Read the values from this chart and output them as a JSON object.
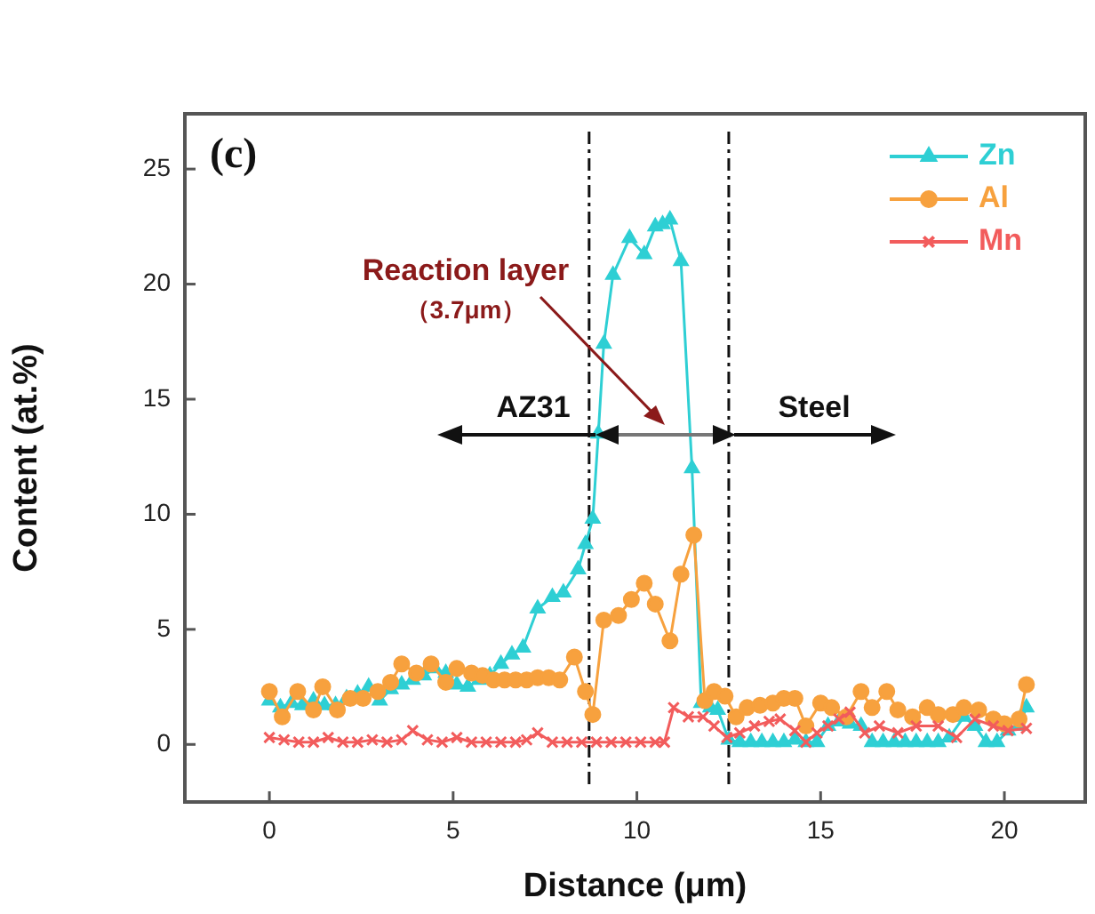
{
  "chart_data": {
    "type": "line",
    "xlabel": "Distance (μm)",
    "ylabel": "Content (at.%)",
    "xlim": [
      -2.3,
      22.2
    ],
    "ylim": [
      -2.5,
      27.4
    ],
    "xticks": [
      0,
      5,
      10,
      15,
      20
    ],
    "yticks": [
      0,
      5,
      10,
      15,
      20,
      25
    ],
    "grid": false,
    "legend": "top right",
    "annotations": [
      "(c)",
      "Reaction layer",
      "（3.7μm）",
      "AZ31",
      "Steel"
    ],
    "ref_lines": [
      {
        "axis": "x",
        "value": 8.7,
        "color": "#111111",
        "line_style": "dashed"
      },
      {
        "axis": "x",
        "value": 12.5,
        "color": "#111111",
        "line_style": "dashed"
      }
    ],
    "series": [
      {
        "name": "Zn",
        "color": "#2ecfd4",
        "marker": "triangle",
        "x": [
          0,
          0.3,
          0.6,
          0.9,
          1.2,
          1.5,
          1.8,
          2.1,
          2.4,
          2.7,
          3.0,
          3.3,
          3.6,
          3.9,
          4.2,
          4.5,
          4.8,
          5.1,
          5.4,
          5.7,
          6.0,
          6.3,
          6.6,
          6.9,
          7.3,
          7.7,
          8.0,
          8.4,
          8.6,
          8.8,
          8.95,
          9.1,
          9.35,
          9.8,
          10.2,
          10.5,
          10.7,
          10.9,
          11.2,
          11.5,
          11.75,
          12.0,
          12.2,
          12.5,
          12.8,
          13.1,
          13.4,
          13.7,
          14.0,
          14.3,
          14.6,
          14.9,
          15.2,
          15.5,
          15.8,
          16.1,
          16.4,
          16.7,
          17.0,
          17.3,
          17.6,
          17.9,
          18.2,
          18.5,
          18.9,
          19.2,
          19.5,
          19.8,
          20.1,
          20.4,
          20.6
        ],
        "values": [
          1.9,
          1.6,
          1.8,
          1.7,
          1.9,
          1.7,
          1.7,
          2.0,
          2.2,
          2.5,
          1.9,
          2.4,
          2.6,
          2.8,
          3.0,
          3.3,
          3.1,
          2.6,
          2.5,
          2.8,
          3.0,
          3.5,
          3.9,
          4.2,
          5.9,
          6.4,
          6.6,
          7.6,
          8.7,
          9.8,
          13.5,
          17.4,
          20.4,
          22.0,
          21.3,
          22.5,
          22.6,
          22.8,
          21.0,
          12.0,
          1.8,
          1.6,
          1.5,
          0.2,
          0.1,
          0.1,
          0.1,
          0.1,
          0.1,
          0.2,
          0.1,
          0.1,
          0.8,
          1.0,
          0.9,
          0.8,
          0.1,
          0.1,
          0.1,
          0.1,
          0.1,
          0.1,
          0.1,
          0.3,
          1.2,
          0.8,
          0.1,
          0.1,
          0.6,
          0.8,
          1.6
        ]
      },
      {
        "name": "Al",
        "color": "#f7a13e",
        "marker": "circle",
        "x": [
          0,
          0.35,
          0.77,
          1.2,
          1.45,
          1.85,
          2.2,
          2.55,
          2.95,
          3.3,
          3.6,
          4.0,
          4.4,
          4.8,
          5.1,
          5.5,
          5.8,
          6.1,
          6.4,
          6.7,
          7.0,
          7.3,
          7.6,
          7.9,
          8.3,
          8.6,
          8.8,
          9.1,
          9.5,
          9.85,
          10.2,
          10.5,
          10.9,
          11.2,
          11.55,
          11.85,
          12.1,
          12.4,
          12.7,
          13.0,
          13.35,
          13.7,
          14.0,
          14.3,
          14.6,
          15.0,
          15.3,
          15.7,
          16.1,
          16.4,
          16.8,
          17.1,
          17.5,
          17.9,
          18.2,
          18.6,
          18.9,
          19.3,
          19.7,
          20.0,
          20.4,
          20.6
        ],
        "values": [
          2.3,
          1.2,
          2.3,
          1.5,
          2.5,
          1.5,
          2.0,
          2.0,
          2.3,
          2.7,
          3.5,
          3.1,
          3.5,
          2.7,
          3.3,
          3.1,
          3.0,
          2.8,
          2.8,
          2.8,
          2.8,
          2.9,
          2.9,
          2.8,
          3.8,
          2.3,
          1.3,
          5.4,
          5.6,
          6.3,
          7.0,
          6.1,
          4.5,
          7.4,
          9.1,
          1.9,
          2.3,
          2.1,
          1.2,
          1.6,
          1.7,
          1.8,
          2.0,
          2.0,
          0.8,
          1.8,
          1.6,
          1.2,
          2.3,
          1.6,
          2.3,
          1.5,
          1.2,
          1.6,
          1.3,
          1.3,
          1.6,
          1.5,
          1.1,
          0.9,
          1.1,
          2.6
        ]
      },
      {
        "name": "Mn",
        "color": "#f25c5c",
        "marker": "cross",
        "x": [
          0,
          0.4,
          0.8,
          1.2,
          1.6,
          2.0,
          2.4,
          2.8,
          3.2,
          3.6,
          3.9,
          4.3,
          4.7,
          5.1,
          5.5,
          5.9,
          6.3,
          6.7,
          7.0,
          7.3,
          7.7,
          8.1,
          8.5,
          8.9,
          9.3,
          9.7,
          10.1,
          10.5,
          10.75,
          11.0,
          11.4,
          11.8,
          12.1,
          12.45,
          12.8,
          13.2,
          13.6,
          13.9,
          14.3,
          14.6,
          14.9,
          15.2,
          15.5,
          15.8,
          16.2,
          16.6,
          17.1,
          17.6,
          18.2,
          18.7,
          19.2,
          19.7,
          20.1,
          20.6
        ],
        "values": [
          0.3,
          0.2,
          0.1,
          0.1,
          0.3,
          0.1,
          0.1,
          0.2,
          0.1,
          0.2,
          0.6,
          0.2,
          0.1,
          0.3,
          0.1,
          0.1,
          0.1,
          0.1,
          0.2,
          0.5,
          0.1,
          0.1,
          0.1,
          0.1,
          0.1,
          0.1,
          0.1,
          0.1,
          0.1,
          1.6,
          1.2,
          1.2,
          0.8,
          0.3,
          0.5,
          0.8,
          1.0,
          1.1,
          0.6,
          0.1,
          0.5,
          0.8,
          1.1,
          1.4,
          0.5,
          0.8,
          0.5,
          0.8,
          0.8,
          0.3,
          1.1,
          0.8,
          0.6,
          0.7
        ]
      }
    ]
  }
}
